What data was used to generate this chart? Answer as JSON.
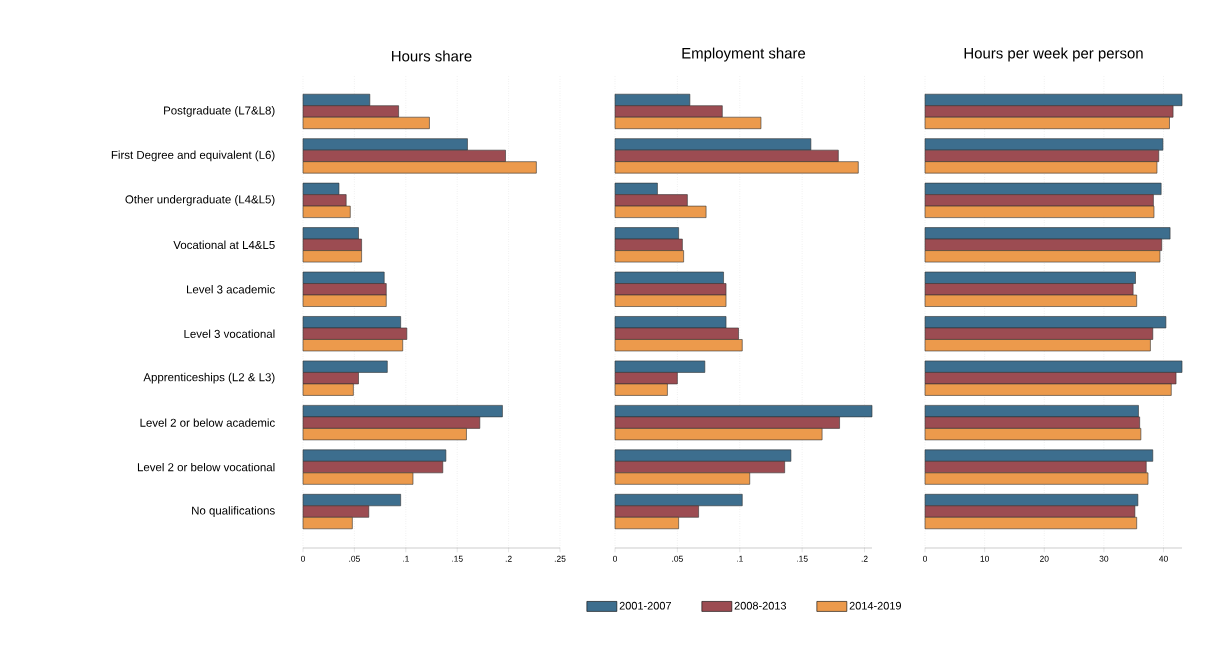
{
  "chart_data": [
    {
      "type": "bar",
      "orientation": "horizontal",
      "title": "Hours share",
      "categories": [
        "Postgraduate (L7&L8)",
        "First Degree and equivalent (L6)",
        "Other undergraduate (L4&L5)",
        "Vocational at L4&L5",
        "Level 3 academic",
        "Level 3 vocational",
        "Apprenticeships (L2 & L3)",
        "Level 2 or below academic",
        "Level 2 or below vocational",
        "No qualifications"
      ],
      "series": [
        {
          "name": "2001-2007",
          "color": "#3d6e8e",
          "values": [
            0.065,
            0.16,
            0.035,
            0.054,
            0.079,
            0.095,
            0.082,
            0.194,
            0.139,
            0.095
          ]
        },
        {
          "name": "2008-2013",
          "color": "#9c4c52",
          "values": [
            0.093,
            0.197,
            0.042,
            0.057,
            0.081,
            0.101,
            0.054,
            0.172,
            0.136,
            0.064
          ]
        },
        {
          "name": "2014-2019",
          "color": "#ec9a4c",
          "values": [
            0.123,
            0.227,
            0.046,
            0.057,
            0.081,
            0.097,
            0.049,
            0.159,
            0.107,
            0.048
          ]
        }
      ],
      "xlim": [
        0,
        0.25
      ],
      "xticks": [
        0,
        {
          "value": 0.05,
          "label": ".05"
        },
        {
          "value": 0.1,
          "label": ".1"
        },
        {
          "value": 0.15,
          "label": ".15"
        },
        {
          "value": 0.2,
          "label": ".2"
        },
        {
          "value": 0.25,
          "label": ".25"
        }
      ],
      "grid": "x",
      "legend": "bottom"
    },
    {
      "type": "bar",
      "orientation": "horizontal",
      "title": "Employment share",
      "categories": [
        null,
        null,
        null,
        null,
        null,
        null,
        null,
        null,
        null,
        null
      ],
      "series": [
        {
          "color": "#3d6e8e",
          "values": [
            0.06,
            0.157,
            0.034,
            0.051,
            0.087,
            0.089,
            0.072,
            0.206,
            0.141,
            0.102
          ]
        },
        {
          "color": "#9c4c52",
          "values": [
            0.086,
            0.179,
            0.058,
            0.054,
            0.089,
            0.099,
            0.05,
            0.18,
            0.136,
            0.067
          ]
        },
        {
          "color": "#ec9a4c",
          "values": [
            0.117,
            0.195,
            0.073,
            0.055,
            0.089,
            0.102,
            0.042,
            0.166,
            0.108,
            0.051
          ]
        }
      ],
      "xlim": [
        0,
        0.206
      ],
      "xticks": [
        0,
        {
          "value": 0.05,
          "label": ".05"
        },
        {
          "value": 0.1,
          "label": ".1"
        },
        {
          "value": 0.15,
          "label": ".15"
        },
        {
          "value": 0.2,
          "label": ".2"
        }
      ],
      "grid": "x",
      "tick_labels": "x"
    },
    {
      "type": "bar",
      "orientation": "horizontal",
      "title": "Hours per week per person",
      "categories": [
        null,
        null,
        null,
        null,
        null,
        null,
        null,
        null,
        null,
        null
      ],
      "series": [
        {
          "color": "#3d6e8e",
          "values": [
            43.1,
            39.9,
            39.6,
            41.1,
            35.3,
            40.4,
            43.1,
            35.8,
            38.2,
            35.7
          ]
        },
        {
          "color": "#9c4c52",
          "values": [
            41.6,
            39.2,
            38.3,
            39.7,
            34.9,
            38.2,
            42.1,
            36.0,
            37.1,
            35.2
          ]
        },
        {
          "color": "#ec9a4c",
          "values": [
            41.0,
            38.9,
            38.4,
            39.4,
            35.5,
            37.8,
            41.3,
            36.2,
            37.4,
            35.5
          ]
        }
      ],
      "xlim": [
        0,
        43.1
      ],
      "xticks": [
        0,
        10,
        20,
        30,
        40
      ],
      "grid": "x",
      "tick_labels": "x"
    }
  ]
}
